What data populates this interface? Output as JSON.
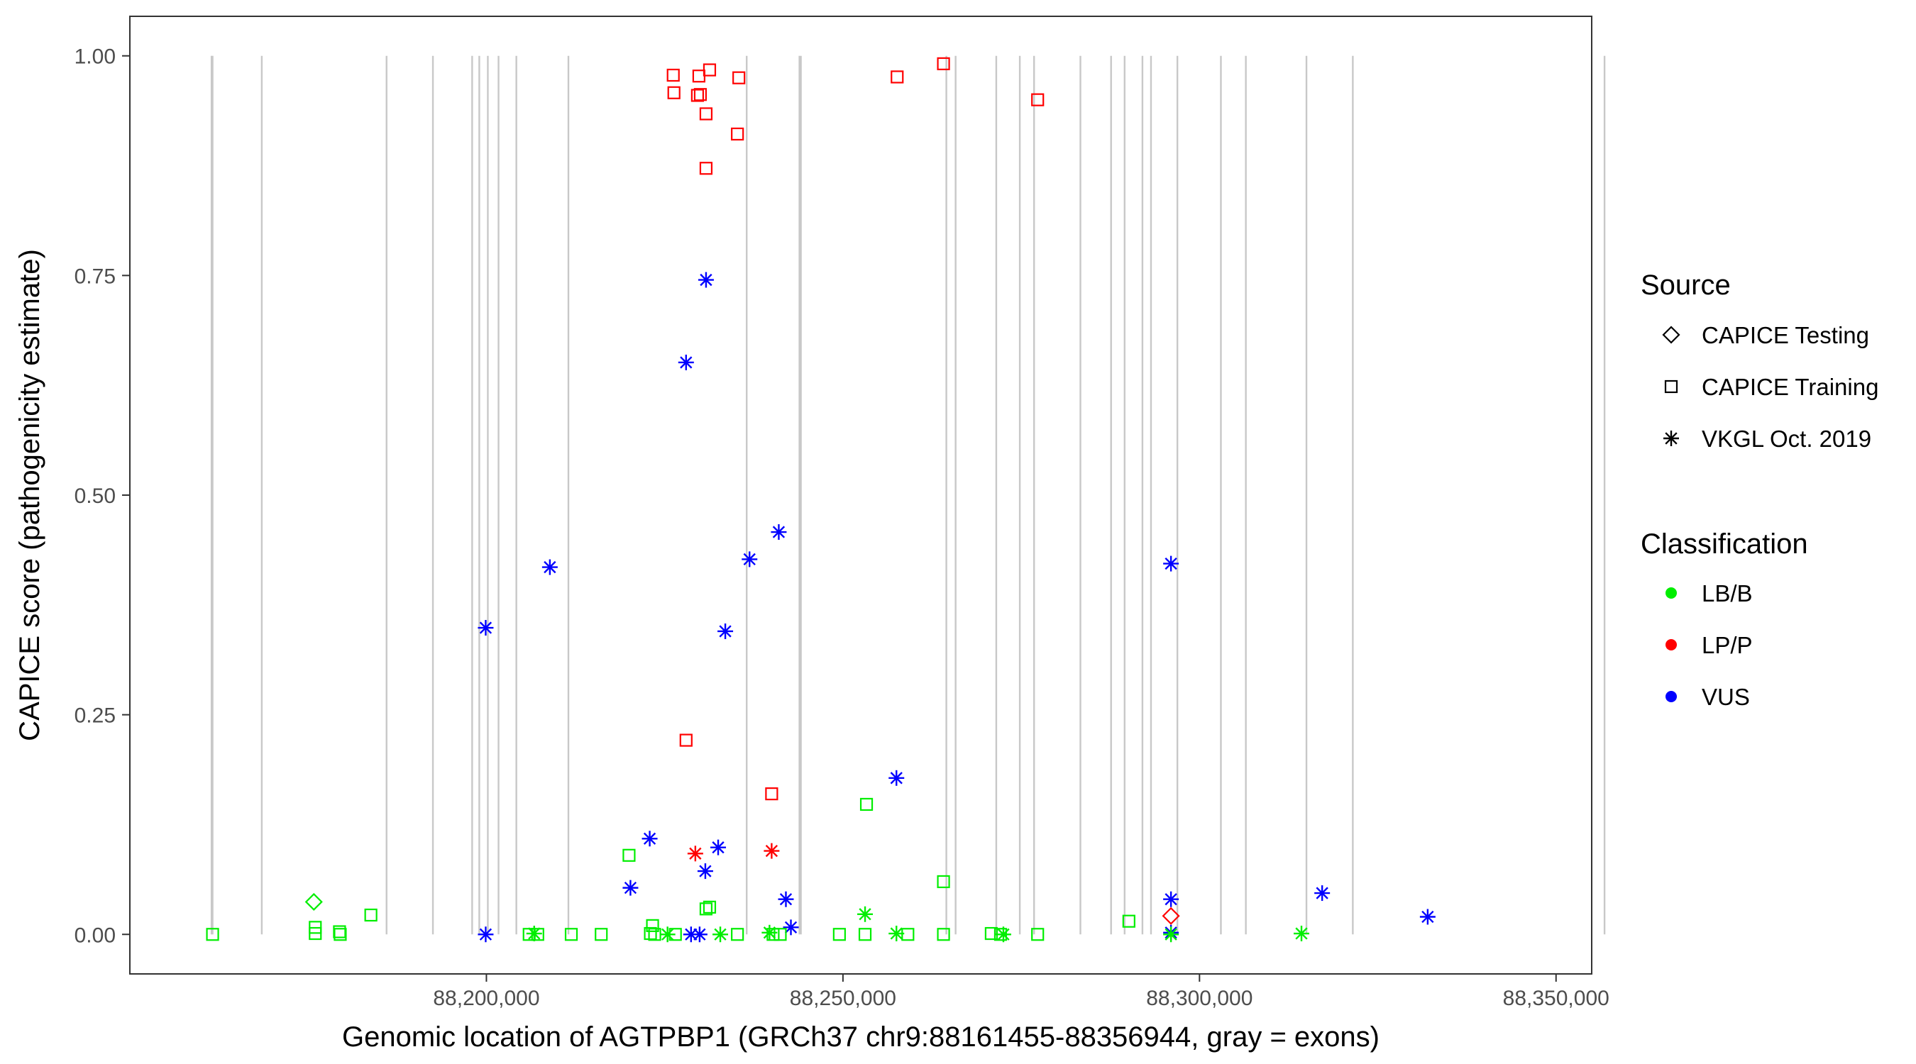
{
  "chart_data": {
    "type": "scatter",
    "xlabel": "Genomic location of AGTPBP1 (GRCh37 chr9:88161455-88356944, gray = exons)",
    "ylabel": "CAPICE score (pathogenicity estimate)",
    "xlim": [
      88150000,
      88355000
    ],
    "ylim": [
      -0.045,
      1.045
    ],
    "x_ticks": [
      88200000,
      88250000,
      88300000,
      88350000
    ],
    "x_tick_labels": [
      "88,200,000",
      "88,250,000",
      "88,300,000",
      "88,350,000"
    ],
    "y_ticks": [
      0,
      0.25,
      0.5,
      0.75,
      1.0
    ],
    "y_tick_labels": [
      "0.00",
      "0.25",
      "0.50",
      "0.75",
      "1.00"
    ],
    "grid": false,
    "exon_lines": [
      88161455,
      88161600,
      88168500,
      88186000,
      88192500,
      88198000,
      88199000,
      88200200,
      88201700,
      88204200,
      88211500,
      88236500,
      88243900,
      88244100,
      88264500,
      88265800,
      88271500,
      88274800,
      88276800,
      88283300,
      88287600,
      88289500,
      88292000,
      88293200,
      88296900,
      88303000,
      88306500,
      88315000,
      88321500,
      88356800
    ],
    "legend": {
      "position": "right",
      "source_title": "Source",
      "source_entries": [
        {
          "label": "CAPICE Testing",
          "shape": "diamond"
        },
        {
          "label": "CAPICE Training",
          "shape": "square"
        },
        {
          "label": "VKGL Oct. 2019",
          "shape": "asterisk"
        }
      ],
      "class_title": "Classification",
      "class_entries": [
        {
          "label": "LB/B",
          "color": "#00ee00"
        },
        {
          "label": "LP/P",
          "color": "#ff0000"
        },
        {
          "label": "VUS",
          "color": "#0000ff"
        }
      ]
    },
    "colors": {
      "LB/B": "#00ee00",
      "LP/P": "#ff0000",
      "VUS": "#0000ff",
      "exon": "#c8c8c8",
      "panel_border": "#333333"
    },
    "points": [
      {
        "x": 88226200,
        "y": 0.978,
        "source": "train",
        "class": "LP/P"
      },
      {
        "x": 88226300,
        "y": 0.958,
        "source": "train",
        "class": "LP/P"
      },
      {
        "x": 88229600,
        "y": 0.955,
        "source": "train",
        "class": "LP/P"
      },
      {
        "x": 88230000,
        "y": 0.956,
        "source": "train",
        "class": "LP/P"
      },
      {
        "x": 88229800,
        "y": 0.977,
        "source": "train",
        "class": "LP/P"
      },
      {
        "x": 88231300,
        "y": 0.984,
        "source": "train",
        "class": "LP/P"
      },
      {
        "x": 88230800,
        "y": 0.934,
        "source": "train",
        "class": "LP/P"
      },
      {
        "x": 88235400,
        "y": 0.975,
        "source": "train",
        "class": "LP/P"
      },
      {
        "x": 88235200,
        "y": 0.911,
        "source": "train",
        "class": "LP/P"
      },
      {
        "x": 88230800,
        "y": 0.872,
        "source": "train",
        "class": "LP/P"
      },
      {
        "x": 88257600,
        "y": 0.976,
        "source": "train",
        "class": "LP/P"
      },
      {
        "x": 88264100,
        "y": 0.991,
        "source": "train",
        "class": "LP/P"
      },
      {
        "x": 88277300,
        "y": 0.95,
        "source": "train",
        "class": "LP/P"
      },
      {
        "x": 88228000,
        "y": 0.221,
        "source": "train",
        "class": "LP/P"
      },
      {
        "x": 88240000,
        "y": 0.16,
        "source": "train",
        "class": "LP/P"
      },
      {
        "x": 88229300,
        "y": 0.092,
        "source": "vkgl",
        "class": "LP/P"
      },
      {
        "x": 88240000,
        "y": 0.095,
        "source": "vkgl",
        "class": "LP/P"
      },
      {
        "x": 88296000,
        "y": 0.021,
        "source": "test",
        "class": "LP/P"
      },
      {
        "x": 88230800,
        "y": 0.745,
        "source": "vkgl",
        "class": "VUS"
      },
      {
        "x": 88228000,
        "y": 0.651,
        "source": "vkgl",
        "class": "VUS"
      },
      {
        "x": 88241000,
        "y": 0.458,
        "source": "vkgl",
        "class": "VUS"
      },
      {
        "x": 88236900,
        "y": 0.427,
        "source": "vkgl",
        "class": "VUS"
      },
      {
        "x": 88296000,
        "y": 0.422,
        "source": "vkgl",
        "class": "VUS"
      },
      {
        "x": 88208900,
        "y": 0.418,
        "source": "vkgl",
        "class": "VUS"
      },
      {
        "x": 88199900,
        "y": 0.349,
        "source": "vkgl",
        "class": "VUS"
      },
      {
        "x": 88233500,
        "y": 0.345,
        "source": "vkgl",
        "class": "VUS"
      },
      {
        "x": 88257500,
        "y": 0.178,
        "source": "vkgl",
        "class": "VUS"
      },
      {
        "x": 88222900,
        "y": 0.109,
        "source": "vkgl",
        "class": "VUS"
      },
      {
        "x": 88232500,
        "y": 0.099,
        "source": "vkgl",
        "class": "VUS"
      },
      {
        "x": 88230700,
        "y": 0.072,
        "source": "vkgl",
        "class": "VUS"
      },
      {
        "x": 88220200,
        "y": 0.053,
        "source": "vkgl",
        "class": "VUS"
      },
      {
        "x": 88317200,
        "y": 0.047,
        "source": "vkgl",
        "class": "VUS"
      },
      {
        "x": 88242000,
        "y": 0.04,
        "source": "vkgl",
        "class": "VUS"
      },
      {
        "x": 88296000,
        "y": 0.04,
        "source": "vkgl",
        "class": "VUS"
      },
      {
        "x": 88332000,
        "y": 0.02,
        "source": "vkgl",
        "class": "VUS"
      },
      {
        "x": 88242700,
        "y": 0.008,
        "source": "vkgl",
        "class": "VUS"
      },
      {
        "x": 88199900,
        "y": 0.0,
        "source": "vkgl",
        "class": "VUS"
      },
      {
        "x": 88228700,
        "y": 0.0,
        "source": "vkgl",
        "class": "VUS"
      },
      {
        "x": 88229900,
        "y": 0.0,
        "source": "vkgl",
        "class": "VUS"
      },
      {
        "x": 88296000,
        "y": 0.002,
        "source": "vkgl",
        "class": "VUS"
      },
      {
        "x": 88175800,
        "y": 0.037,
        "source": "test",
        "class": "LB/B"
      },
      {
        "x": 88183800,
        "y": 0.022,
        "source": "train",
        "class": "LB/B"
      },
      {
        "x": 88220000,
        "y": 0.09,
        "source": "train",
        "class": "LB/B"
      },
      {
        "x": 88253300,
        "y": 0.148,
        "source": "train",
        "class": "LB/B"
      },
      {
        "x": 88264100,
        "y": 0.06,
        "source": "train",
        "class": "LB/B"
      },
      {
        "x": 88253100,
        "y": 0.023,
        "source": "vkgl",
        "class": "LB/B"
      },
      {
        "x": 88290100,
        "y": 0.015,
        "source": "train",
        "class": "LB/B"
      },
      {
        "x": 88230800,
        "y": 0.029,
        "source": "train",
        "class": "LB/B"
      },
      {
        "x": 88231300,
        "y": 0.031,
        "source": "train",
        "class": "LB/B"
      },
      {
        "x": 88223300,
        "y": 0.01,
        "source": "train",
        "class": "LB/B"
      },
      {
        "x": 88176000,
        "y": 0.008,
        "source": "train",
        "class": "LB/B"
      },
      {
        "x": 88161600,
        "y": 0.0,
        "source": "train",
        "class": "LB/B"
      },
      {
        "x": 88176000,
        "y": 0.001,
        "source": "train",
        "class": "LB/B"
      },
      {
        "x": 88179400,
        "y": 0.003,
        "source": "train",
        "class": "LB/B"
      },
      {
        "x": 88179500,
        "y": 0.0,
        "source": "train",
        "class": "LB/B"
      },
      {
        "x": 88206000,
        "y": 0.0,
        "source": "train",
        "class": "LB/B"
      },
      {
        "x": 88206700,
        "y": 0.001,
        "source": "vkgl",
        "class": "LB/B"
      },
      {
        "x": 88207200,
        "y": 0.0,
        "source": "train",
        "class": "LB/B"
      },
      {
        "x": 88211900,
        "y": 0.0,
        "source": "train",
        "class": "LB/B"
      },
      {
        "x": 88216100,
        "y": 0.0,
        "source": "train",
        "class": "LB/B"
      },
      {
        "x": 88223000,
        "y": 0.001,
        "source": "train",
        "class": "LB/B"
      },
      {
        "x": 88223600,
        "y": 0.0,
        "source": "train",
        "class": "LB/B"
      },
      {
        "x": 88225400,
        "y": 0.0,
        "source": "vkgl",
        "class": "LB/B"
      },
      {
        "x": 88226500,
        "y": 0.0,
        "source": "train",
        "class": "LB/B"
      },
      {
        "x": 88232800,
        "y": 0.0,
        "source": "vkgl",
        "class": "LB/B"
      },
      {
        "x": 88235200,
        "y": 0.0,
        "source": "train",
        "class": "LB/B"
      },
      {
        "x": 88239700,
        "y": 0.002,
        "source": "vkgl",
        "class": "LB/B"
      },
      {
        "x": 88240200,
        "y": 0.0,
        "source": "train",
        "class": "LB/B"
      },
      {
        "x": 88241200,
        "y": 0.0,
        "source": "train",
        "class": "LB/B"
      },
      {
        "x": 88249500,
        "y": 0.0,
        "source": "train",
        "class": "LB/B"
      },
      {
        "x": 88253100,
        "y": 0.0,
        "source": "train",
        "class": "LB/B"
      },
      {
        "x": 88257500,
        "y": 0.001,
        "source": "vkgl",
        "class": "LB/B"
      },
      {
        "x": 88259100,
        "y": 0.0,
        "source": "train",
        "class": "LB/B"
      },
      {
        "x": 88264100,
        "y": 0.0,
        "source": "train",
        "class": "LB/B"
      },
      {
        "x": 88270800,
        "y": 0.001,
        "source": "train",
        "class": "LB/B"
      },
      {
        "x": 88272100,
        "y": 0.0,
        "source": "train",
        "class": "LB/B"
      },
      {
        "x": 88272500,
        "y": 0.0,
        "source": "vkgl",
        "class": "LB/B"
      },
      {
        "x": 88277300,
        "y": 0.0,
        "source": "train",
        "class": "LB/B"
      },
      {
        "x": 88296000,
        "y": 0.0,
        "source": "vkgl",
        "class": "LB/B"
      },
      {
        "x": 88314300,
        "y": 0.001,
        "source": "vkgl",
        "class": "LB/B"
      }
    ]
  }
}
